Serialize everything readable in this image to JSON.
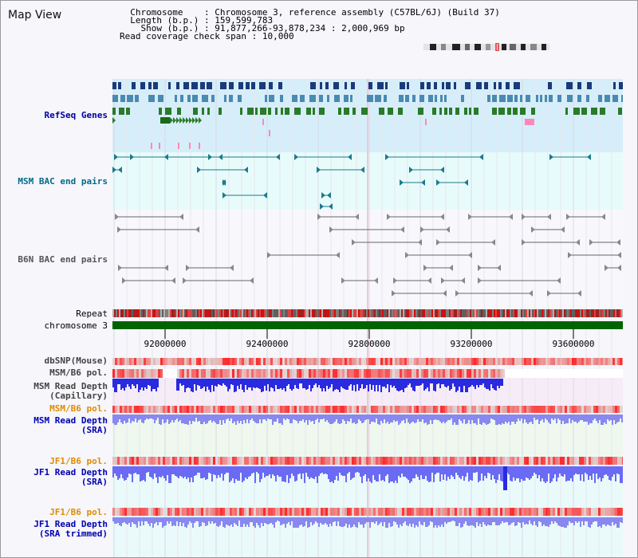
{
  "title": "Map View",
  "info": [
    {
      "label": "Chromosome   ",
      "value": "Chromosome 3, reference assembly (C57BL/6J) (Build 37)"
    },
    {
      "label": "Length (b.p.)",
      "value": "159,599,783"
    },
    {
      "label": "  Show (b.p.)",
      "value": "91,877,266-93,878,234 : 2,000,969 bp"
    },
    {
      "label": "Read coverage check span",
      "value": "10,000"
    }
  ],
  "tracks": {
    "refseq": "RefSeq Genes",
    "msm_bac": "MSM BAC end pairs",
    "b6n_bac": "B6N BAC end pairs",
    "repeat": "Repeat",
    "chromosome": "chromosome 3",
    "dbsnp": "dbSNP(Mouse)",
    "msm_pol_1": "MSM/B6 pol.",
    "msm_depth_cap_1": "MSM Read Depth",
    "msm_depth_cap_2": "(Capillary)",
    "msm_pol_2": "MSM/B6 pol.",
    "msm_depth_sra_1": "MSM Read Depth",
    "msm_depth_sra_2": "(SRA)",
    "jf1_pol_1": "JF1/B6 pol.",
    "jf1_depth_sra_1": "JF1 Read Depth",
    "jf1_depth_sra_2": "(SRA)",
    "jf1_pol_2": "JF1/B6 pol.",
    "jf1_depth_trim_1": "JF1 Read Depth",
    "jf1_depth_trim_2": "(SRA trimmed)"
  },
  "ticks": [
    "92000000",
    "92400000",
    "92800000",
    "93200000",
    "93600000"
  ],
  "colors": {
    "refseq_label": "#0000a0",
    "msm_bac_label": "#006b8a",
    "b6n_label": "#555555",
    "pol_label_orange": "#e08a00",
    "depth_label_blue": "#0000b0",
    "refseq_bg": "#d6eefa",
    "bac_bg": "#e8fbfb",
    "chromosome_green": "#006400",
    "depth_blue": "#2a2ae0",
    "depth_light_blue": "#7a7af0",
    "pol_red": "#e01010"
  }
}
